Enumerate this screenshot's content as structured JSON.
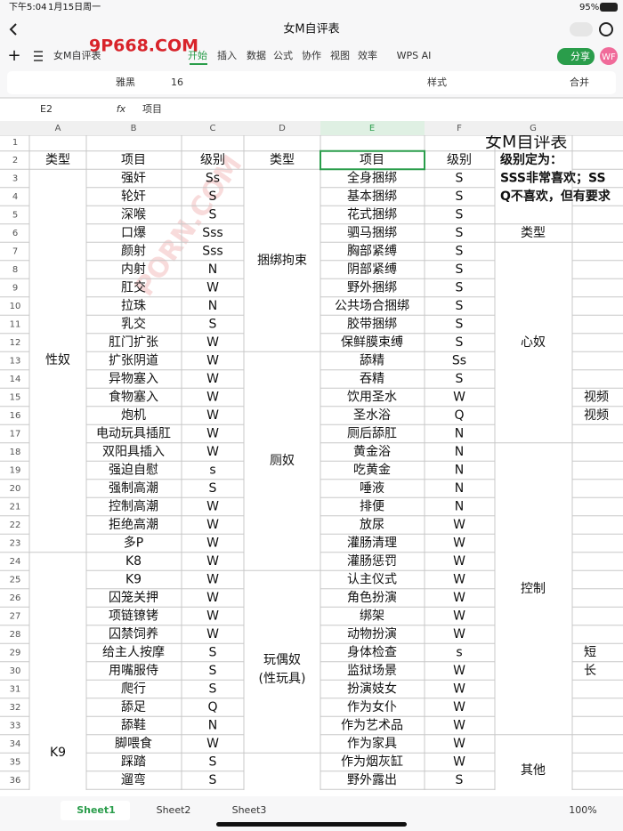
{
  "status_bar": {
    "time": "下午5:04",
    "date": "1月15日周一",
    "battery": "95%"
  },
  "title_bar": {
    "title": "女M自评表"
  },
  "toolbar": {
    "file_name": "女M自评表",
    "tabs": [
      "开始",
      "插入",
      "数据",
      "公式",
      "协作",
      "视图",
      "效率",
      "WPS AI"
    ],
    "share": "分享",
    "avatar": "WF"
  },
  "watermarks": [
    "9P668.COM",
    "PORN.COM"
  ],
  "format_bar": {
    "font": "雅黑",
    "size": "16",
    "styles": "样式",
    "merge": "合并"
  },
  "formula_bar": {
    "cell": "E2",
    "fx": "fx",
    "content": "项目"
  },
  "sheet": {
    "columns": [
      "A",
      "B",
      "C",
      "D",
      "E",
      "F",
      "G"
    ],
    "row_numbers": [
      1,
      2,
      3,
      4,
      5,
      6,
      7,
      8,
      9,
      10,
      11,
      12,
      13,
      14,
      15,
      16,
      17,
      18,
      19,
      20,
      21,
      22,
      23,
      24,
      25,
      26,
      27,
      28,
      29,
      30,
      31,
      32,
      33,
      34,
      35,
      36
    ],
    "title": "女M自评表",
    "headers": [
      "类型",
      "项目",
      "级别",
      "类型",
      "项目",
      "级别"
    ],
    "col_a": [
      "性奴",
      "K9"
    ],
    "col_b": [
      "强奸",
      "轮奸",
      "深喉",
      "口爆",
      "颜射",
      "内射",
      "肛交",
      "拉珠",
      "乳交",
      "肛门扩张",
      "扩张阴道",
      "异物塞入",
      "食物塞入",
      "炮机",
      "电动玩具插肛",
      "双阳具插入",
      "强迫自慰",
      "强制高潮",
      "控制高潮",
      "拒绝高潮",
      "多P",
      "K8",
      "K9",
      "囚笼关押",
      "项链镣铐",
      "囚禁饲养",
      "给主人按摩",
      "用嘴服侍",
      "爬行",
      "舔足",
      "舔鞋",
      "脚喂食",
      "踩踏",
      "遛弯"
    ],
    "col_c": [
      "Ss",
      "S",
      "S",
      "Sss",
      "Sss",
      "N",
      "W",
      "N",
      "S",
      "W",
      "W",
      "W",
      "W",
      "W",
      "W",
      "W",
      "s",
      "S",
      "W",
      "W",
      "W",
      "W",
      "W",
      "W",
      "W",
      "W",
      "S",
      "S",
      "S",
      "Q",
      "N",
      "W",
      "S",
      "S"
    ],
    "col_d": [
      "捆绑拘束",
      "厕奴",
      "玩偶奴",
      "(性玩具)"
    ],
    "col_e": [
      "全身捆绑",
      "基本捆绑",
      "花式捆绑",
      "驷马捆绑",
      "胸部紧缚",
      "阴部紧缚",
      "野外捆绑",
      "公共场合捆绑",
      "胶带捆绑",
      "保鲜膜束缚",
      "舔精",
      "吞精",
      "饮用圣水",
      "圣水浴",
      "厕后舔肛",
      "黄金浴",
      "吃黄金",
      "唾液",
      "排便",
      "放尿",
      "灌肠清理",
      "灌肠惩罚",
      "认主仪式",
      "角色扮演",
      "绑架",
      "动物扮演",
      "身体检查",
      "监狱场景",
      "扮演妓女",
      "作为女仆",
      "作为艺术品",
      "作为家具",
      "作为烟灰缸",
      "野外露出"
    ],
    "col_f": [
      "S",
      "S",
      "S",
      "S",
      "S",
      "S",
      "S",
      "S",
      "S",
      "S",
      "Ss",
      "S",
      "W",
      "Q",
      "N",
      "N",
      "N",
      "N",
      "N",
      "W",
      "W",
      "W",
      "W",
      "W",
      "W",
      "W",
      "s",
      "W",
      "W",
      "W",
      "W",
      "W",
      "W",
      "S"
    ],
    "notes": [
      "级别定为：",
      "SSS非常喜欢；SS",
      "Q不喜欢，但有要求"
    ],
    "col_g_type": "类型",
    "col_g": [
      "心奴",
      "控制",
      "其他"
    ],
    "col_h": [
      "视频",
      "视频",
      "短",
      "长"
    ]
  },
  "sheet_tabs": [
    "Sheet1",
    "Sheet2",
    "Sheet3"
  ],
  "zoom": "100%"
}
